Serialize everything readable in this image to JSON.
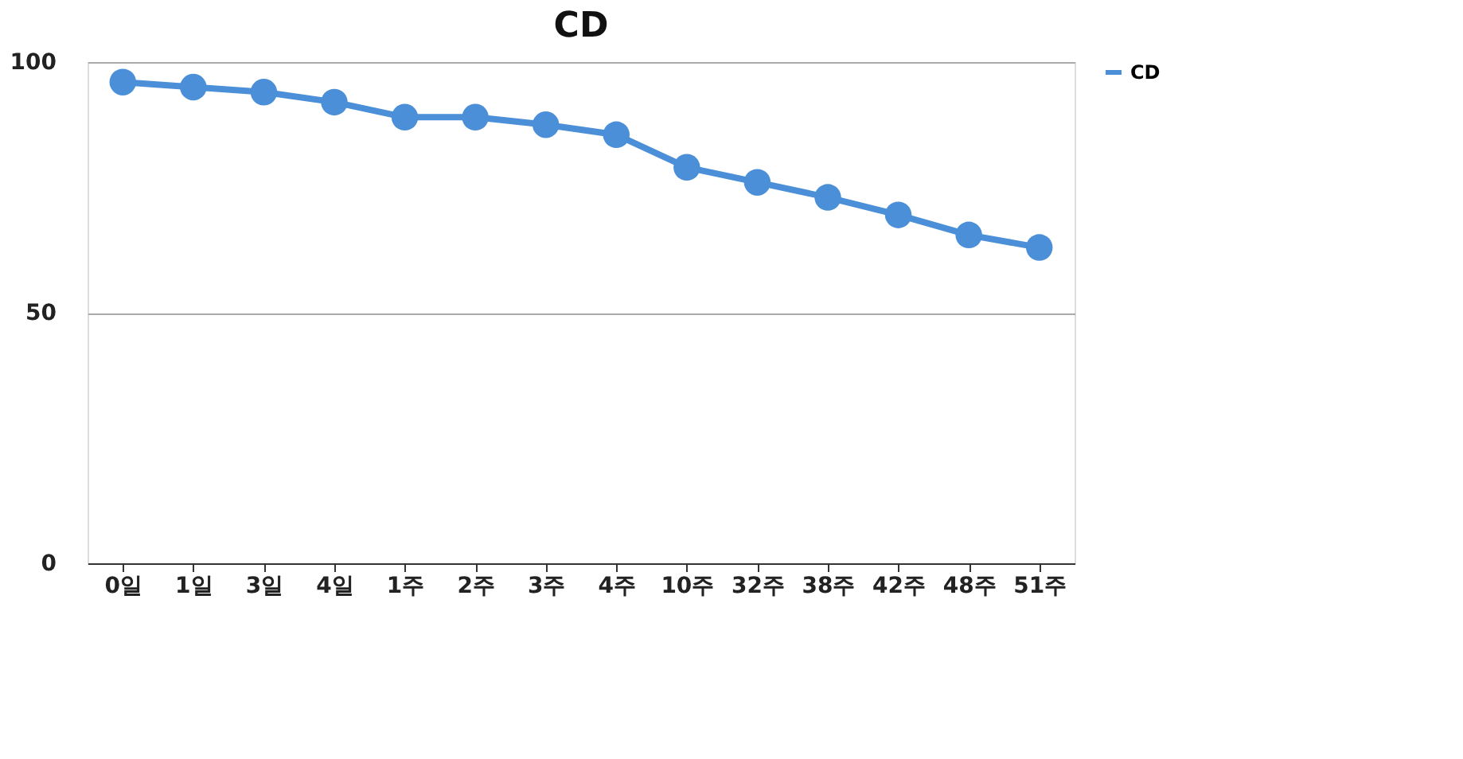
{
  "chart_data": {
    "type": "line",
    "title": "CD",
    "categories": [
      "0일",
      "1일",
      "3일",
      "4일",
      "1주",
      "2주",
      "3주",
      "4주",
      "10주",
      "32주",
      "38주",
      "42주",
      "48주",
      "51주"
    ],
    "series": [
      {
        "name": "CD",
        "color": "#4a8fd8",
        "values": [
          96,
          95,
          94,
          92,
          89,
          89,
          87.5,
          85.5,
          79,
          76,
          73,
          69.5,
          65.5,
          63
        ]
      }
    ],
    "ylim": [
      0,
      100
    ],
    "yticks": [
      0,
      50,
      100
    ],
    "grid": "y",
    "legend": "right",
    "marker": "circle",
    "line_style": "solid"
  }
}
